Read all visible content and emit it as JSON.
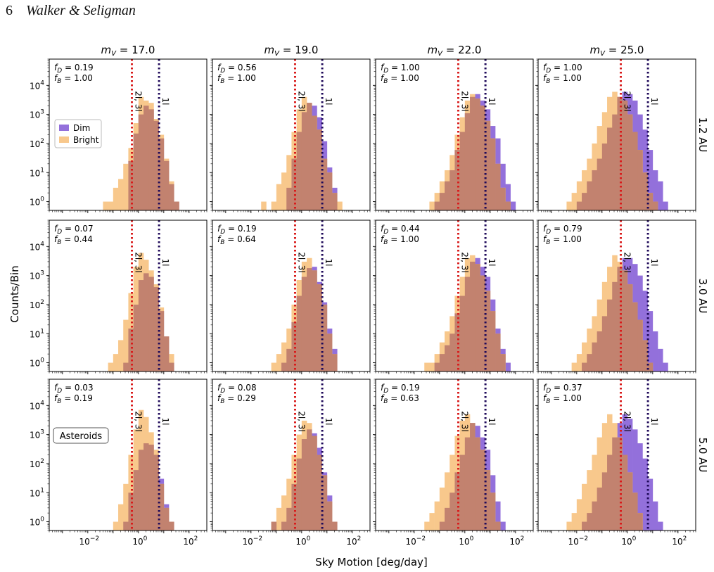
{
  "header": {
    "page_number": "6",
    "authors": "Walker & Seligman"
  },
  "colors": {
    "dim": "#9370DB",
    "bright": "#F8C88C",
    "overlap": "#C2826F",
    "line_red": "#D91C1C",
    "line_navy": "#1F0A5A"
  },
  "figure": {
    "xlabel": "Sky Motion [deg/day]",
    "ylabel": "Counts/Bin",
    "column_titles": [
      "m_V = 17.0",
      "m_V = 19.0",
      "m_V = 22.0",
      "m_V = 25.0"
    ],
    "row_titles": [
      "1.2 AU",
      "3.0 AU",
      "5.0 AU"
    ],
    "legend": {
      "location": "left-middle of top-left panel",
      "items": [
        "Dim",
        "Bright"
      ]
    },
    "asteroids_label": "Asteroids",
    "line_labels": {
      "red": "2l, 3l",
      "navy": "1l"
    }
  },
  "chart_data": {
    "type": "histogram",
    "xscale": "log",
    "yscale": "log",
    "xlim": [
      0.0003,
      500
    ],
    "ylim": [
      0.5,
      80000
    ],
    "x_ticks": [
      "10^-2",
      "10^0",
      "10^2"
    ],
    "y_ticks": [
      "10^0",
      "10^1",
      "10^2",
      "10^3",
      "10^4"
    ],
    "vertical_lines": [
      {
        "label": "2l, 3l",
        "x": 0.55,
        "color": "red",
        "style": "dotted"
      },
      {
        "label": "1l",
        "x": 6.5,
        "color": "navy",
        "style": "dotted"
      }
    ],
    "bin_edges_log10": [
      -3.2,
      -3.0,
      -2.8,
      -2.6,
      -2.4,
      -2.2,
      -2.0,
      -1.8,
      -1.6,
      -1.4,
      -1.2,
      -1.0,
      -0.8,
      -0.6,
      -0.4,
      -0.2,
      0.0,
      0.2,
      0.4,
      0.6,
      0.8,
      1.0,
      1.2,
      1.4,
      1.6,
      1.8,
      2.0
    ],
    "panels": [
      {
        "row": 0,
        "col": 0,
        "stats": {
          "fD": "0.19",
          "fB": "1.00"
        },
        "dim": [
          0,
          0,
          0,
          0,
          0,
          0,
          0,
          0,
          0,
          0,
          0,
          0,
          0,
          0,
          25,
          220,
          1000,
          2000,
          1500,
          600,
          150,
          25,
          4,
          1,
          0,
          0
        ],
        "bright": [
          0,
          0,
          0,
          0,
          0,
          0,
          0,
          0,
          0,
          1,
          1,
          3,
          6,
          20,
          70,
          500,
          4000,
          3000,
          2500,
          700,
          200,
          30,
          5,
          1,
          0,
          0
        ]
      },
      {
        "row": 0,
        "col": 1,
        "stats": {
          "fD": "0.56",
          "fB": "1.00"
        },
        "dim": [
          0,
          0,
          0,
          0,
          0,
          0,
          0,
          0,
          0,
          0,
          0,
          0,
          0,
          3,
          30,
          250,
          1200,
          2500,
          2000,
          800,
          120,
          15,
          3,
          0,
          0,
          0
        ],
        "bright": [
          0,
          0,
          0,
          0,
          0,
          0,
          0,
          0,
          1,
          0,
          1,
          4,
          10,
          40,
          250,
          1500,
          4000,
          2500,
          900,
          300,
          30,
          10,
          2,
          1,
          0,
          0
        ]
      },
      {
        "row": 0,
        "col": 2,
        "stats": {
          "fD": "1.00",
          "fB": "1.00"
        },
        "dim": [
          0,
          0,
          0,
          0,
          0,
          0,
          0,
          0,
          0,
          0,
          1,
          2,
          5,
          12,
          60,
          250,
          1100,
          4000,
          5000,
          3000,
          1500,
          400,
          150,
          20,
          4,
          1
        ],
        "bright": [
          0,
          0,
          0,
          0,
          0,
          0,
          0,
          0,
          0,
          1,
          2,
          5,
          12,
          40,
          200,
          800,
          3000,
          5000,
          3500,
          2000,
          600,
          150,
          20,
          3,
          1,
          0
        ]
      },
      {
        "row": 0,
        "col": 3,
        "stats": {
          "fD": "1.00",
          "fB": "1.00"
        },
        "dim": [
          0,
          0,
          0,
          0,
          0,
          0,
          1,
          2,
          5,
          12,
          30,
          100,
          350,
          1000,
          4000,
          6000,
          5000,
          3000,
          1000,
          300,
          60,
          12,
          5,
          1,
          0,
          0
        ],
        "bright": [
          0,
          0,
          0,
          0,
          1,
          2,
          5,
          12,
          30,
          100,
          400,
          1200,
          4000,
          6000,
          4000,
          3000,
          1000,
          250,
          60,
          10,
          2,
          1,
          0,
          0,
          0,
          0
        ]
      },
      {
        "row": 1,
        "col": 0,
        "stats": {
          "fD": "0.07",
          "fB": "0.44"
        },
        "dim": [
          0,
          0,
          0,
          0,
          0,
          0,
          0,
          0,
          0,
          0,
          0,
          0,
          0,
          1,
          15,
          100,
          700,
          1200,
          900,
          400,
          60,
          8,
          1,
          0,
          0,
          0
        ],
        "bright": [
          0,
          0,
          0,
          0,
          0,
          0,
          0,
          0,
          0,
          0,
          1,
          2,
          6,
          30,
          250,
          2000,
          6000,
          3500,
          1500,
          500,
          80,
          8,
          2,
          0,
          0,
          0
        ]
      },
      {
        "row": 1,
        "col": 1,
        "stats": {
          "fD": "0.19",
          "fB": "0.64"
        },
        "dim": [
          0,
          0,
          0,
          0,
          0,
          0,
          0,
          0,
          0,
          0,
          0,
          0,
          1,
          3,
          25,
          200,
          900,
          1800,
          2000,
          600,
          120,
          15,
          3,
          0,
          0,
          0
        ],
        "bright": [
          0,
          0,
          0,
          0,
          0,
          0,
          0,
          0,
          0,
          0,
          1,
          2,
          5,
          15,
          100,
          700,
          3000,
          4000,
          1500,
          500,
          100,
          10,
          2,
          0,
          0,
          0
        ]
      },
      {
        "row": 1,
        "col": 2,
        "stats": {
          "fD": "0.44",
          "fB": "1.00"
        },
        "dim": [
          0,
          0,
          0,
          0,
          0,
          0,
          0,
          0,
          0,
          0,
          1,
          2,
          4,
          10,
          50,
          200,
          900,
          3000,
          4000,
          2000,
          900,
          150,
          15,
          3,
          1,
          0
        ],
        "bright": [
          0,
          0,
          0,
          0,
          0,
          0,
          0,
          0,
          1,
          1,
          2,
          5,
          12,
          40,
          200,
          900,
          4000,
          5000,
          2500,
          1000,
          300,
          60,
          10,
          2,
          0,
          0
        ]
      },
      {
        "row": 1,
        "col": 3,
        "stats": {
          "fD": "0.79",
          "fB": "1.00"
        },
        "dim": [
          0,
          0,
          0,
          0,
          0,
          0,
          0,
          1,
          2,
          5,
          12,
          40,
          150,
          600,
          2000,
          4000,
          4000,
          2500,
          1000,
          300,
          60,
          12,
          3,
          1,
          0,
          0
        ],
        "bright": [
          0,
          0,
          0,
          0,
          0,
          1,
          2,
          5,
          15,
          40,
          150,
          600,
          2000,
          5000,
          3000,
          1500,
          500,
          120,
          30,
          6,
          1,
          0,
          0,
          0,
          0,
          0
        ]
      },
      {
        "row": 2,
        "col": 0,
        "stats": {
          "fD": "0.03",
          "fB": "0.19"
        },
        "dim": [
          0,
          0,
          0,
          0,
          0,
          0,
          0,
          0,
          0,
          0,
          0,
          0,
          0,
          1,
          10,
          60,
          300,
          500,
          450,
          200,
          30,
          4,
          1,
          0,
          0,
          0
        ],
        "bright": [
          0,
          0,
          0,
          0,
          0,
          0,
          0,
          0,
          0,
          0,
          0,
          1,
          4,
          20,
          200,
          1500,
          7000,
          4000,
          1200,
          300,
          20,
          3,
          1,
          0,
          0,
          0
        ]
      },
      {
        "row": 2,
        "col": 1,
        "stats": {
          "fD": "0.08",
          "fB": "0.29"
        },
        "dim": [
          0,
          0,
          0,
          0,
          0,
          0,
          0,
          0,
          0,
          0,
          1,
          0,
          1,
          3,
          20,
          150,
          700,
          1500,
          1100,
          350,
          50,
          8,
          1,
          0,
          0,
          0
        ],
        "bright": [
          0,
          0,
          0,
          0,
          0,
          0,
          0,
          0,
          0,
          0,
          1,
          3,
          8,
          30,
          200,
          1000,
          3000,
          2500,
          900,
          200,
          40,
          5,
          1,
          0,
          0,
          0
        ]
      },
      {
        "row": 2,
        "col": 2,
        "stats": {
          "fD": "0.19",
          "fB": "0.63"
        },
        "dim": [
          0,
          0,
          0,
          0,
          0,
          0,
          0,
          0,
          0,
          0,
          0,
          1,
          3,
          10,
          50,
          200,
          800,
          2500,
          2000,
          800,
          300,
          40,
          5,
          1,
          0,
          0
        ],
        "bright": [
          0,
          0,
          0,
          0,
          0,
          0,
          0,
          0,
          1,
          2,
          5,
          15,
          50,
          200,
          900,
          3000,
          5000,
          2500,
          800,
          300,
          60,
          10,
          1,
          0,
          0,
          0
        ]
      },
      {
        "row": 2,
        "col": 3,
        "stats": {
          "fD": "0.37",
          "fB": "1.00"
        },
        "dim": [
          0,
          0,
          0,
          0,
          0,
          0,
          0,
          1,
          2,
          5,
          15,
          50,
          200,
          800,
          2500,
          5000,
          3500,
          1500,
          500,
          150,
          30,
          5,
          1,
          0,
          0,
          0
        ],
        "bright": [
          0,
          0,
          0,
          0,
          1,
          2,
          6,
          20,
          60,
          200,
          800,
          2500,
          5000,
          2500,
          800,
          200,
          50,
          10,
          2,
          0,
          0,
          0,
          0,
          0,
          0,
          0
        ]
      }
    ]
  }
}
